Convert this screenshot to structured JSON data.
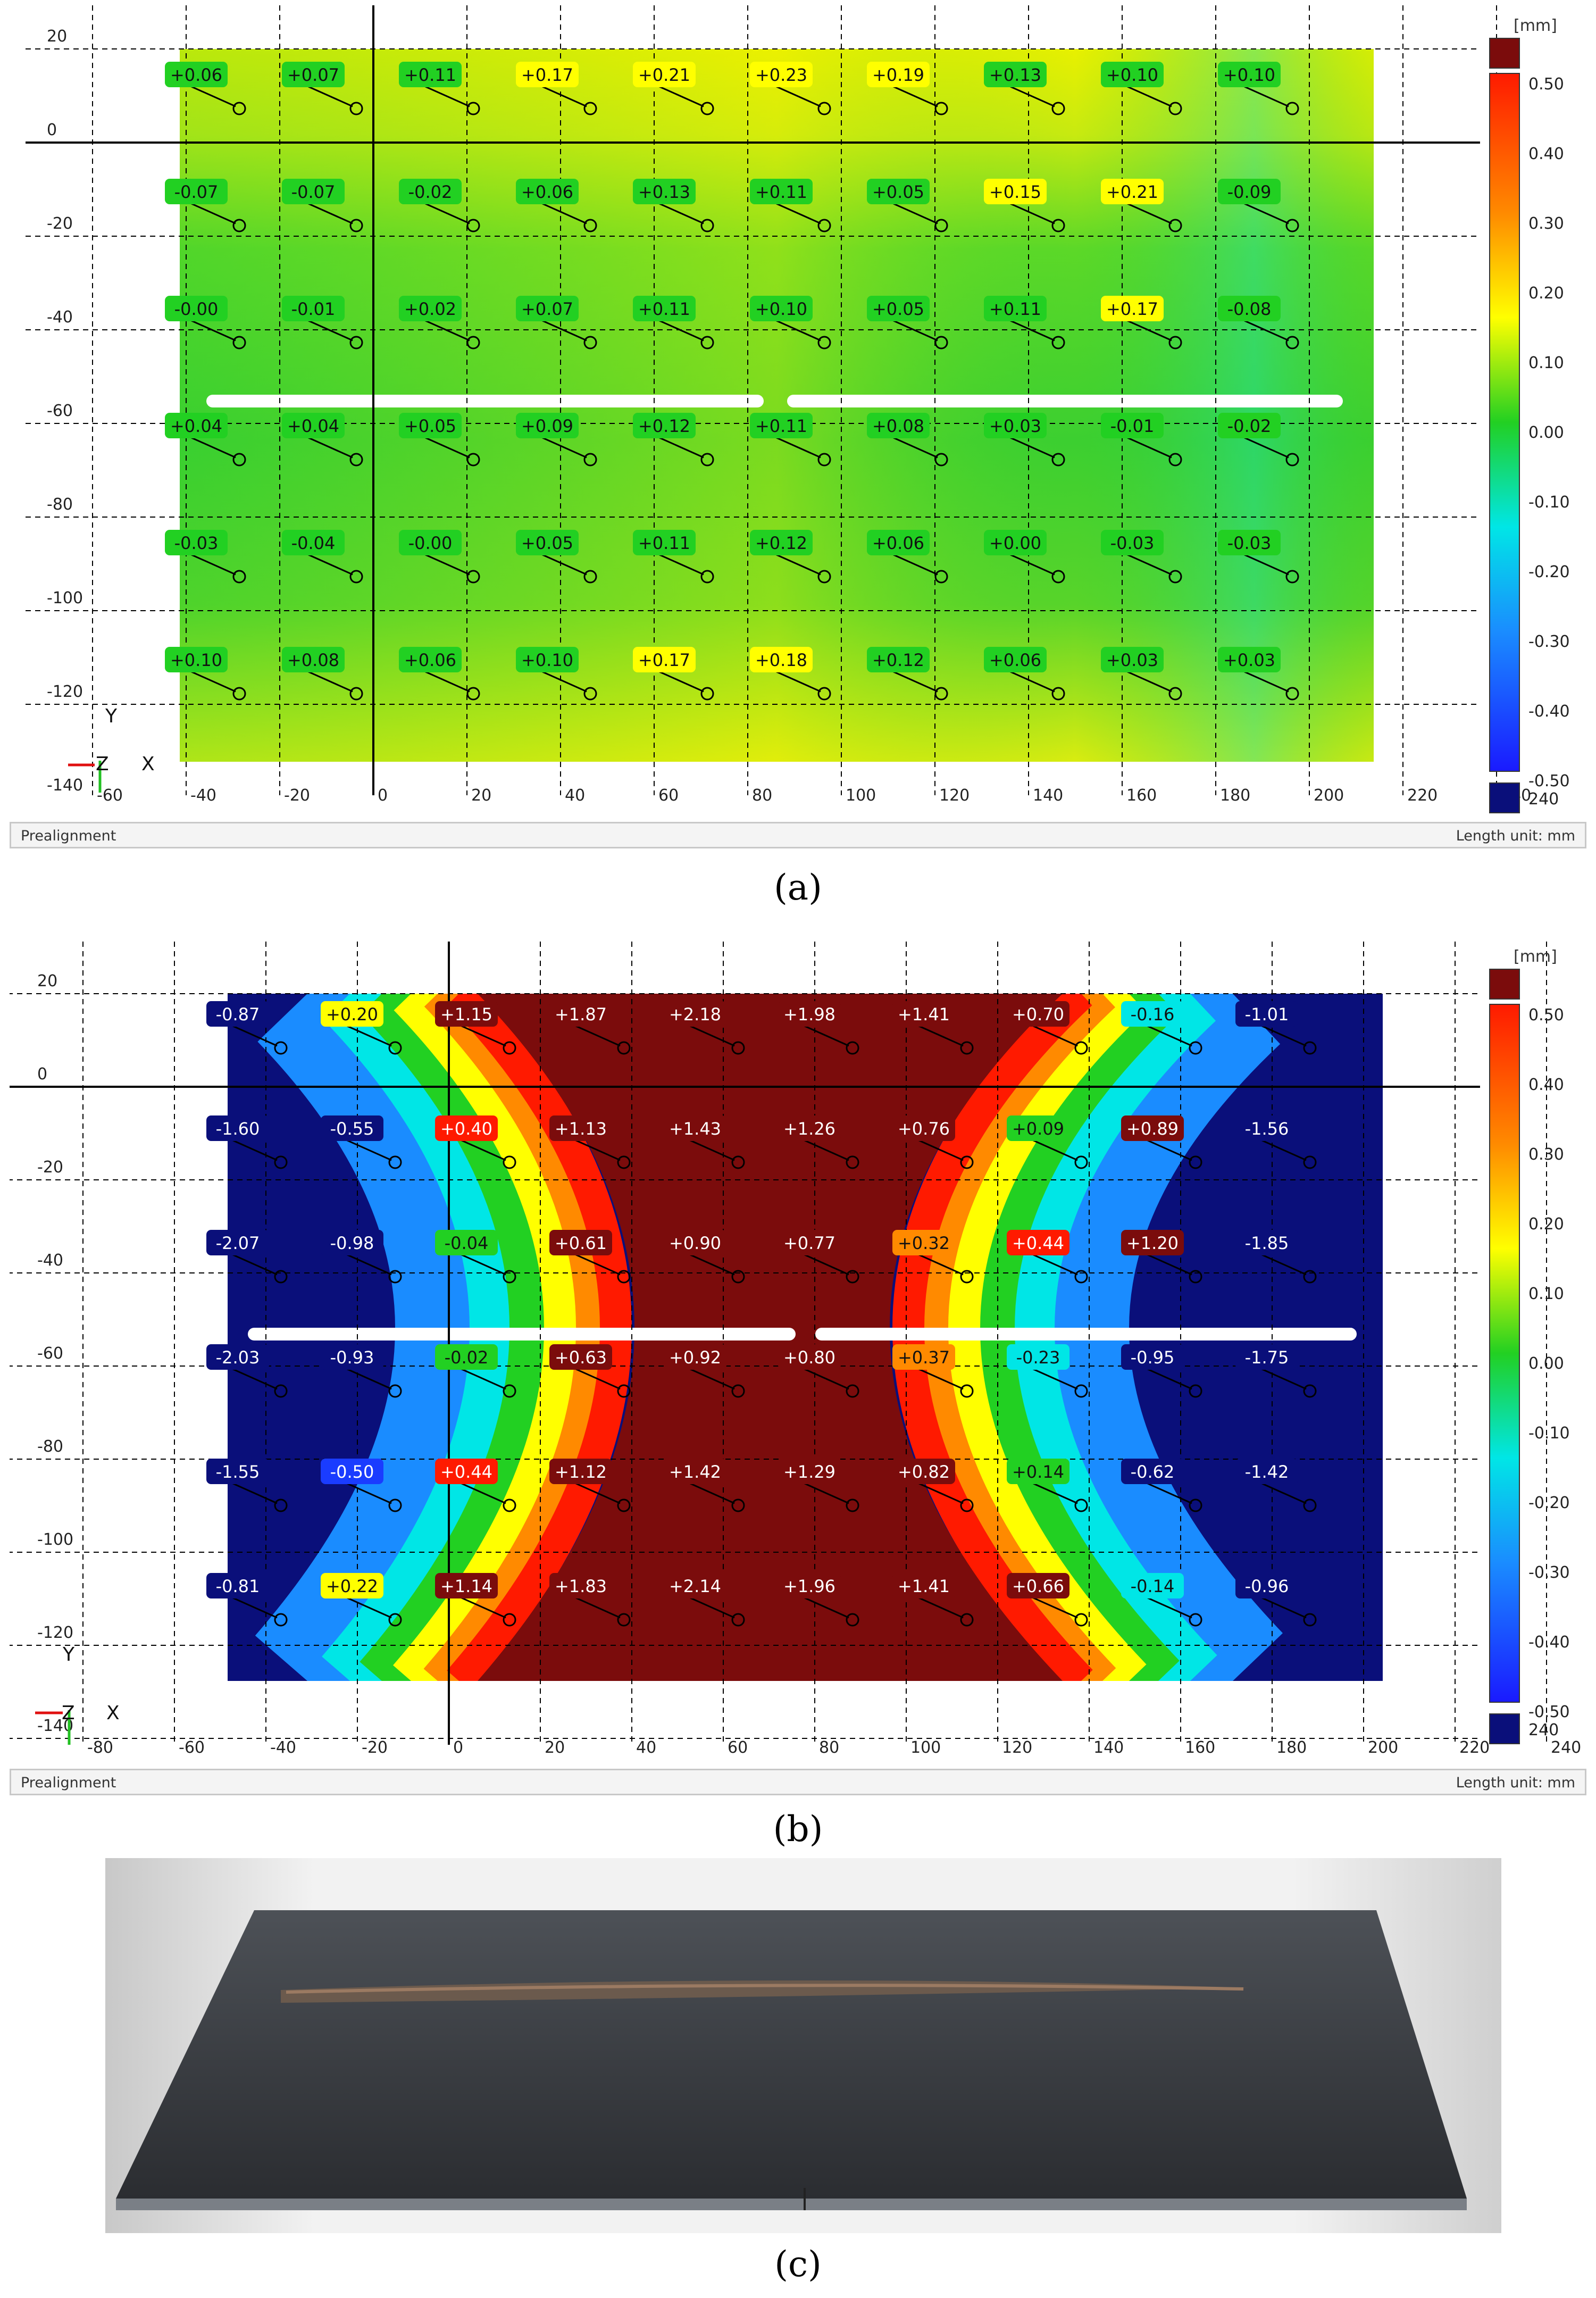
{
  "panels": [
    {
      "id": "a",
      "caption": "(a)",
      "status_left": "Prealignment",
      "status_right": "Length unit: mm",
      "scale_unit": "[mm]",
      "scale_ticks": [
        "0.50",
        "0.40",
        "0.30",
        "0.20",
        "0.10",
        "0.00",
        "-0.10",
        "-0.20",
        "-0.30",
        "-0.40",
        "-0.50"
      ],
      "x_ticks": [
        "-60",
        "-40",
        "-20",
        "0",
        "20",
        "40",
        "60",
        "80",
        "100",
        "120",
        "140",
        "160",
        "180",
        "200",
        "220",
        "240"
      ],
      "y_ticks": [
        "20",
        "0",
        "-20",
        "-40",
        "-60",
        "-80",
        "-100",
        "-120",
        "-140"
      ],
      "axis_labels": {
        "y": "Y",
        "z": "Z",
        "x": "X"
      },
      "rows": [
        [
          "+0.06",
          "+0.07",
          "+0.11",
          "+0.17",
          "+0.21",
          "+0.23",
          "+0.19",
          "+0.13",
          "+0.10",
          "+0.10"
        ],
        [
          "-0.07",
          "-0.07",
          "-0.02",
          "+0.06",
          "+0.13",
          "+0.11",
          "+0.05",
          "+0.15",
          "+0.21",
          "-0.09"
        ],
        [
          "-0.00",
          "-0.01",
          "+0.02",
          "+0.07",
          "+0.11",
          "+0.10",
          "+0.05",
          "+0.11",
          "+0.17",
          "-0.08"
        ],
        [
          "+0.04",
          "+0.04",
          "+0.05",
          "+0.09",
          "+0.12",
          "+0.11",
          "+0.08",
          "+0.03",
          "-0.01",
          "-0.02"
        ],
        [
          "-0.03",
          "-0.04",
          "-0.00",
          "+0.05",
          "+0.11",
          "+0.12",
          "+0.06",
          "+0.00",
          "-0.03",
          "-0.03"
        ],
        [
          "+0.10",
          "+0.08",
          "+0.06",
          "+0.10",
          "+0.17",
          "+0.18",
          "+0.12",
          "+0.06",
          "+0.03",
          "+0.03"
        ]
      ]
    },
    {
      "id": "b",
      "caption": "(b)",
      "status_left": "Prealignment",
      "status_right": "Length unit: mm",
      "scale_unit": "[mm]",
      "scale_ticks": [
        "0.50",
        "0.40",
        "0.30",
        "0.20",
        "0.10",
        "0.00",
        "-0.10",
        "-0.20",
        "-0.30",
        "-0.40",
        "-0.50"
      ],
      "x_ticks": [
        "-80",
        "-60",
        "-40",
        "-20",
        "0",
        "20",
        "40",
        "60",
        "80",
        "100",
        "120",
        "140",
        "160",
        "180",
        "200",
        "220",
        "240"
      ],
      "y_ticks": [
        "20",
        "0",
        "-20",
        "-40",
        "-60",
        "-80",
        "-100",
        "-120",
        "-140"
      ],
      "axis_labels": {
        "y": "Y",
        "z": "Z",
        "x": "X"
      },
      "rows": [
        [
          "-0.87",
          "+0.20",
          "+1.15",
          "+1.87",
          "+2.18",
          "+1.98",
          "+1.41",
          "+0.70",
          "-0.16",
          "-1.01"
        ],
        [
          "-1.60",
          "-0.55",
          "+0.40",
          "+1.13",
          "+1.43",
          "+1.26",
          "+0.76",
          "+0.09",
          "+0.89",
          "-1.56"
        ],
        [
          "-2.07",
          "-0.98",
          "-0.04",
          "+0.61",
          "+0.90",
          "+0.77",
          "+0.32",
          "+0.44",
          "+1.20",
          "-1.85"
        ],
        [
          "-2.03",
          "-0.93",
          "-0.02",
          "+0.63",
          "+0.92",
          "+0.80",
          "+0.37",
          "-0.23",
          "-0.95",
          "-1.75"
        ],
        [
          "-1.55",
          "-0.50",
          "+0.44",
          "+1.12",
          "+1.42",
          "+1.29",
          "+0.82",
          "+0.14",
          "-0.62",
          "-1.42"
        ],
        [
          "-0.81",
          "+0.22",
          "+1.14",
          "+1.83",
          "+2.14",
          "+1.96",
          "+1.41",
          "+0.66",
          "-0.14",
          "-0.96"
        ]
      ]
    }
  ],
  "photo": {
    "caption": "(c)"
  },
  "colors": {
    "deep_red": "#7b0c0c",
    "red": "#ff1a00",
    "orange": "#ff8a00",
    "yellow": "#ffff00",
    "green": "#22d022",
    "cyan": "#00e6e6",
    "blue": "#1a3cff",
    "navy": "#0a0f7a"
  }
}
